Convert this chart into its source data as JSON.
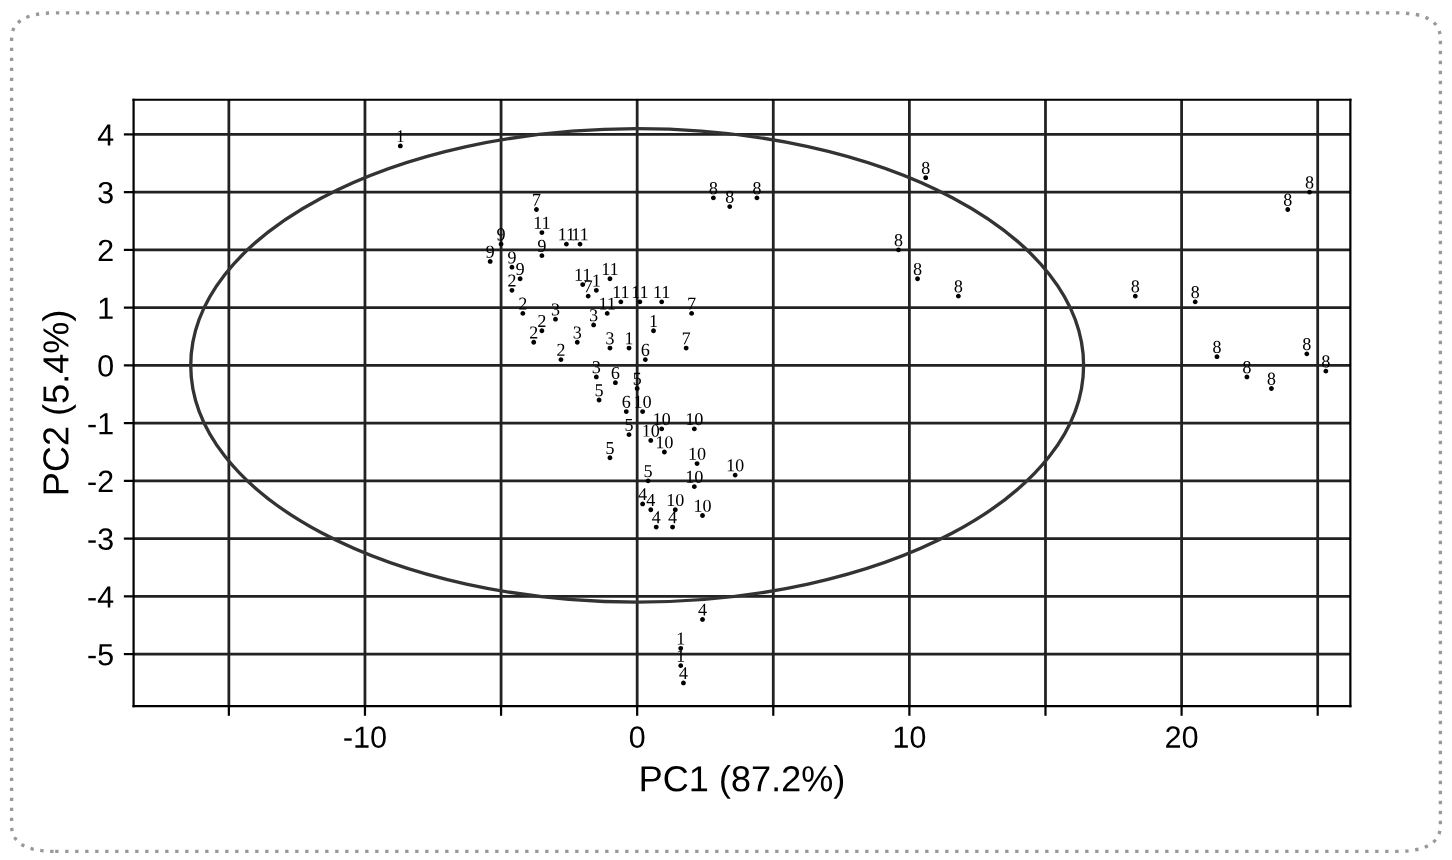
{
  "chart_data": {
    "type": "scatter",
    "xlabel": "PC1 (87.2%)",
    "ylabel": "PC2 (5.4%)",
    "xlim": [
      -18.5,
      26.2
    ],
    "ylim": [
      -5.9,
      4.6
    ],
    "xticks": [
      {
        "value": -15,
        "label": null
      },
      -10,
      {
        "value": -5,
        "label": null
      },
      0,
      {
        "value": 5,
        "label": null
      },
      10,
      {
        "value": 15,
        "label": null
      },
      20,
      {
        "value": 25,
        "label": null
      }
    ],
    "yticks": [
      -5,
      -4,
      -3,
      -2,
      -1,
      0,
      1,
      2,
      3,
      4
    ],
    "grid": true,
    "series": [
      {
        "name": "1",
        "color": "#000000",
        "x": [
          -8.7,
          -1.5,
          0.6,
          -0.3,
          1.6,
          1.6
        ],
        "values": [
          3.8,
          1.3,
          0.6,
          0.3,
          -4.9,
          -5.2
        ]
      },
      {
        "name": "2",
        "color": "#000000",
        "x": [
          -4.6,
          -4.2,
          -3.5,
          -3.8,
          -2.8
        ],
        "values": [
          1.3,
          0.9,
          0.6,
          0.4,
          0.1
        ]
      },
      {
        "name": "3",
        "color": "#000000",
        "x": [
          -3.0,
          -1.6,
          -2.2,
          -1.0,
          -1.5
        ],
        "values": [
          0.8,
          0.7,
          0.4,
          0.3,
          -0.2
        ]
      },
      {
        "name": "4",
        "color": "#000000",
        "x": [
          0.7,
          1.3,
          2.4,
          1.7,
          0.2,
          0.5
        ],
        "values": [
          -2.8,
          -2.8,
          -4.4,
          -5.5,
          -2.4,
          -2.5
        ]
      },
      {
        "name": "5",
        "color": "#000000",
        "x": [
          -1.0,
          0.4,
          -1.4,
          -0.3,
          0.0
        ],
        "values": [
          -1.6,
          -2.0,
          -0.6,
          -1.2,
          -0.4
        ]
      },
      {
        "name": "6",
        "color": "#000000",
        "x": [
          0.3,
          -0.8,
          -0.4
        ],
        "values": [
          0.1,
          -0.3,
          -0.8
        ]
      },
      {
        "name": "7",
        "color": "#000000",
        "x": [
          -3.7,
          2.0,
          1.8,
          -1.8
        ],
        "values": [
          2.7,
          0.9,
          0.3,
          1.2
        ]
      },
      {
        "name": "8",
        "color": "#000000",
        "x": [
          2.8,
          3.4,
          4.4,
          10.6,
          9.6,
          10.3,
          11.8,
          18.3,
          20.5,
          21.3,
          22.4,
          23.3,
          24.6,
          25.3,
          23.9,
          24.7
        ],
        "values": [
          2.9,
          2.75,
          2.9,
          3.25,
          2.0,
          1.5,
          1.2,
          1.2,
          1.1,
          0.15,
          -0.2,
          -0.4,
          0.2,
          -0.1,
          2.7,
          3.0
        ]
      },
      {
        "name": "9",
        "color": "#000000",
        "x": [
          -5.0,
          -3.5,
          -4.6,
          -4.3,
          -5.4
        ],
        "values": [
          2.1,
          1.9,
          1.7,
          1.5,
          1.8
        ]
      },
      {
        "name": "10",
        "color": "#000000",
        "x": [
          0.9,
          2.1,
          1.0,
          2.2,
          3.6,
          2.1,
          2.4,
          1.4,
          0.2,
          0.5
        ],
        "values": [
          -1.1,
          -1.1,
          -1.5,
          -1.7,
          -1.9,
          -2.1,
          -2.6,
          -2.5,
          -0.8,
          -1.3
        ]
      },
      {
        "name": "11",
        "color": "#000000",
        "x": [
          -3.5,
          -2.6,
          -2.1,
          -1.0,
          -0.6,
          0.1,
          0.9,
          -2.0,
          -1.1
        ],
        "values": [
          2.3,
          2.1,
          2.1,
          1.5,
          1.1,
          1.1,
          1.1,
          1.4,
          0.9
        ]
      }
    ]
  }
}
